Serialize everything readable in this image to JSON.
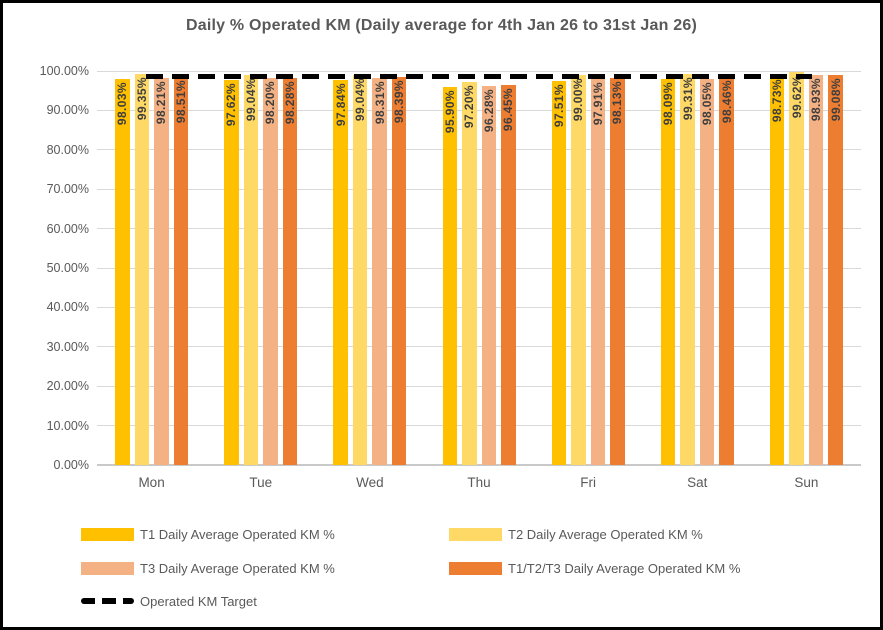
{
  "chart_data": {
    "type": "bar",
    "title": "Daily % Operated KM (Daily average for 4th Jan 26 to 31st Jan 26)",
    "categories": [
      "Mon",
      "Tue",
      "Wed",
      "Thu",
      "Fri",
      "Sat",
      "Sun"
    ],
    "series": [
      {
        "name": "T1 Daily Average Operated KM %",
        "color": "#FFC000",
        "values": [
          98.03,
          97.62,
          97.84,
          95.9,
          97.51,
          98.09,
          98.73
        ]
      },
      {
        "name": "T2 Daily Average Operated KM %",
        "color": "#FFD966",
        "values": [
          99.35,
          99.04,
          99.04,
          97.2,
          99.0,
          99.31,
          99.62
        ]
      },
      {
        "name": "T3 Daily Average Operated KM %",
        "color": "#F4B183",
        "values": [
          98.21,
          98.2,
          98.31,
          96.28,
          97.91,
          98.05,
          98.93
        ]
      },
      {
        "name": "T1/T2/T3 Daily Average Operated KM %",
        "color": "#ED7D31",
        "values": [
          98.51,
          98.28,
          98.39,
          96.45,
          98.13,
          98.46,
          99.08
        ]
      }
    ],
    "data_label_format": "0.00%",
    "target_line": {
      "name": "Operated KM Target",
      "value": 98.5,
      "color": "#000000",
      "style": "dashed"
    },
    "y_axis": {
      "min": 0,
      "max": 100,
      "step": 10,
      "tick_labels": [
        "0.00%",
        "10.00%",
        "20.00%",
        "30.00%",
        "40.00%",
        "50.00%",
        "60.00%",
        "70.00%",
        "80.00%",
        "90.00%",
        "100.00%"
      ]
    },
    "grid": true,
    "legend_position": "bottom-left"
  }
}
